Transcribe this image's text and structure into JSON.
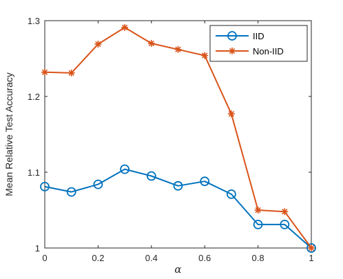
{
  "chart_data": {
    "type": "line",
    "xlabel": "α",
    "ylabel": "Mean Relative Test Accuracy",
    "xlim": [
      0,
      1
    ],
    "ylim": [
      1,
      1.3
    ],
    "xticks": [
      "0",
      "0.2",
      "0.4",
      "0.6",
      "0.8",
      "1"
    ],
    "yticks": [
      "1",
      "1.1",
      "1.2",
      "1.3"
    ],
    "x": [
      0,
      0.1,
      0.2,
      0.3,
      0.4,
      0.5,
      0.6,
      0.7,
      0.8,
      0.9,
      1.0
    ],
    "legend_position": "top-right",
    "grid": false,
    "series": [
      {
        "name": "IID",
        "color": "#0072BD",
        "marker": "circle",
        "values": [
          1.081,
          1.074,
          1.084,
          1.104,
          1.095,
          1.082,
          1.088,
          1.071,
          1.031,
          1.031,
          1.0
        ]
      },
      {
        "name": "Non-IID",
        "color": "#D95319",
        "marker": "asterisk",
        "values": [
          1.232,
          1.231,
          1.269,
          1.291,
          1.27,
          1.262,
          1.254,
          1.177,
          1.05,
          1.048,
          1.0
        ]
      }
    ]
  }
}
